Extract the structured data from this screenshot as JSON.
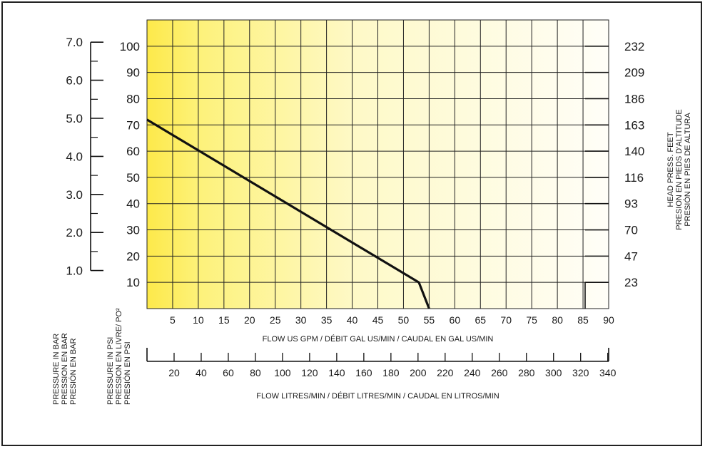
{
  "chart_data": {
    "type": "line",
    "x_axis_primary": {
      "label": "FLOW US GPM  /  DÉBIT GAL US/MIN  /  CAUDAL EN GAL US/MIN",
      "ticks": [
        5,
        10,
        15,
        20,
        25,
        30,
        35,
        40,
        45,
        50,
        55,
        60,
        65,
        70,
        75,
        80,
        85,
        90
      ],
      "range": [
        0,
        90
      ]
    },
    "x_axis_secondary": {
      "label": "FLOW LITRES/MIN  /  DÉBIT LITRES/MIN  /  CAUDAL EN LITROS/MIN",
      "ticks": [
        20,
        40,
        60,
        80,
        100,
        120,
        140,
        160,
        180,
        200,
        220,
        240,
        260,
        280,
        300,
        320,
        340
      ]
    },
    "y_axis_psi": {
      "label_lines": [
        "PRESSURE IN PSI",
        "PRESSION EN LIVRE/ PO²",
        "PRESIÓN EN PSI"
      ],
      "ticks": [
        10,
        20,
        30,
        40,
        50,
        60,
        70,
        80,
        90,
        100
      ],
      "range": [
        0,
        110
      ]
    },
    "y_axis_bar": {
      "label_lines": [
        "PRESSURE IN BAR",
        "PRESSION EN BAR",
        "PRESIÓN EN BAR"
      ],
      "ticks": [
        "1.0",
        "2.0",
        "3.0",
        "4.0",
        "5.0",
        "6.0",
        "7.0"
      ]
    },
    "y_axis_feet": {
      "label_lines": [
        "HEAD PRESS. FEET",
        "PRESION EN PIEDS D'ALTITUDE",
        "PRESIÓN EN PIES DE ALTURA"
      ],
      "ticks": [
        23,
        47,
        70,
        93,
        116,
        140,
        163,
        186,
        209,
        232
      ]
    },
    "series": [
      {
        "x": [
          0,
          53,
          55
        ],
        "y": [
          72,
          10,
          0
        ]
      }
    ],
    "grid": true,
    "background_gradient": [
      "#fde94a",
      "#fffef8"
    ]
  }
}
